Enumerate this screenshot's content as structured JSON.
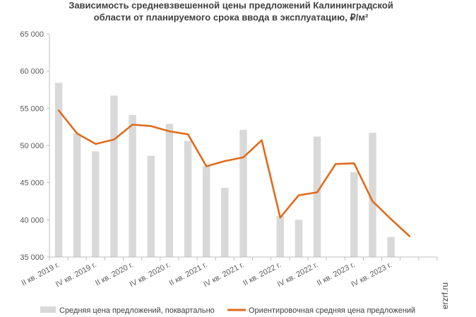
{
  "chart_data": {
    "type": "bar",
    "title_lines": [
      "Зависимость средневзвешенной цены предложений Калининградской",
      "области от планируемого срока ввода в эксплуатацию,  ₽/м²"
    ],
    "categories": [
      "II кв. 2019 г.",
      "",
      "IV кв. 2019 г.",
      "",
      "II кв. 2020 г.",
      "",
      "IV кв. 2020 г.",
      "",
      "II кв. 2021 г.",
      "",
      "IV кв. 2021 г.",
      "",
      "II кв. 2022 г.",
      "",
      "IV кв. 2022 г.",
      "",
      "II кв. 2023 г.",
      "",
      "IV кв. 2023 г.",
      "",
      ""
    ],
    "ylim": [
      35000,
      65000
    ],
    "yticks": [
      35000,
      40000,
      45000,
      50000,
      55000,
      60000,
      65000
    ],
    "ytick_labels": [
      "35 000",
      "40 000",
      "45 000",
      "50 000",
      "55 000",
      "60 000",
      "65 000"
    ],
    "series": [
      {
        "name": "Средняя цена предложений,  поквартально",
        "kind": "bar",
        "color": "#d9d9d9",
        "values": [
          58400,
          51600,
          49200,
          56700,
          54100,
          48600,
          52900,
          50600,
          47200,
          44300,
          52100,
          null,
          40500,
          40000,
          51200,
          null,
          46400,
          51700,
          37700,
          null,
          null
        ]
      },
      {
        "name": "Ориентировочная  средняя цена предложений",
        "kind": "line",
        "color": "#e06b1a",
        "values": [
          54700,
          51600,
          50200,
          50800,
          52800,
          52600,
          51900,
          51500,
          47200,
          47900,
          48400,
          50700,
          40300,
          43300,
          43700,
          47500,
          47600,
          42500,
          40100,
          37800,
          null
        ]
      }
    ],
    "legend_position": "bottom",
    "grid": false
  },
  "watermark": "erzrf.ru"
}
